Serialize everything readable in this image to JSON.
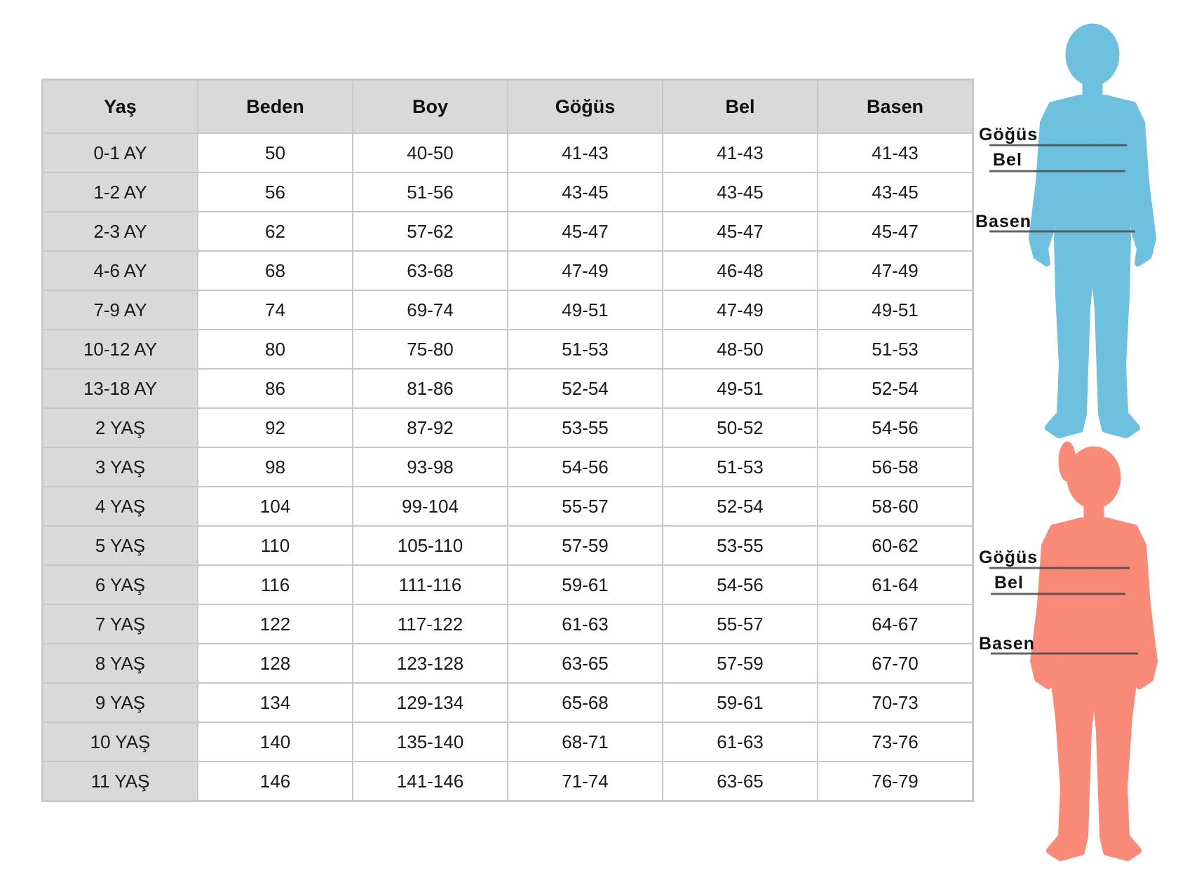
{
  "table": {
    "headers": [
      "Yaş",
      "Beden",
      "Boy",
      "Göğüs",
      "Bel",
      "Basen"
    ],
    "rows": [
      [
        "0-1 AY",
        "50",
        "40-50",
        "41-43",
        "41-43",
        "41-43"
      ],
      [
        "1-2 AY",
        "56",
        "51-56",
        "43-45",
        "43-45",
        "43-45"
      ],
      [
        "2-3 AY",
        "62",
        "57-62",
        "45-47",
        "45-47",
        "45-47"
      ],
      [
        "4-6 AY",
        "68",
        "63-68",
        "47-49",
        "46-48",
        "47-49"
      ],
      [
        "7-9 AY",
        "74",
        "69-74",
        "49-51",
        "47-49",
        "49-51"
      ],
      [
        "10-12 AY",
        "80",
        "75-80",
        "51-53",
        "48-50",
        "51-53"
      ],
      [
        "13-18 AY",
        "86",
        "81-86",
        "52-54",
        "49-51",
        "52-54"
      ],
      [
        "2 YAŞ",
        "92",
        "87-92",
        "53-55",
        "50-52",
        "54-56"
      ],
      [
        "3 YAŞ",
        "98",
        "93-98",
        "54-56",
        "51-53",
        "56-58"
      ],
      [
        "4 YAŞ",
        "104",
        "99-104",
        "55-57",
        "52-54",
        "58-60"
      ],
      [
        "5 YAŞ",
        "110",
        "105-110",
        "57-59",
        "53-55",
        "60-62"
      ],
      [
        "6 YAŞ",
        "116",
        "111-116",
        "59-61",
        "54-56",
        "61-64"
      ],
      [
        "7 YAŞ",
        "122",
        "117-122",
        "61-63",
        "55-57",
        "64-67"
      ],
      [
        "8 YAŞ",
        "128",
        "123-128",
        "63-65",
        "57-59",
        "67-70"
      ],
      [
        "9 YAŞ",
        "134",
        "129-134",
        "65-68",
        "59-61",
        "70-73"
      ],
      [
        "10 YAŞ",
        "140",
        "135-140",
        "68-71",
        "61-63",
        "73-76"
      ],
      [
        "11 YAŞ",
        "146",
        "141-146",
        "71-74",
        "63-65",
        "76-79"
      ]
    ]
  },
  "figures": {
    "boy": {
      "color": "#6ec1de",
      "labels": {
        "chest": "Göğüs",
        "waist": "Bel",
        "hip": "Basen"
      }
    },
    "girl": {
      "color": "#fa8a78",
      "labels": {
        "chest": "Göğüs",
        "waist": "Bel",
        "hip": "Basen"
      }
    },
    "line_color": "#4a4a4a"
  }
}
